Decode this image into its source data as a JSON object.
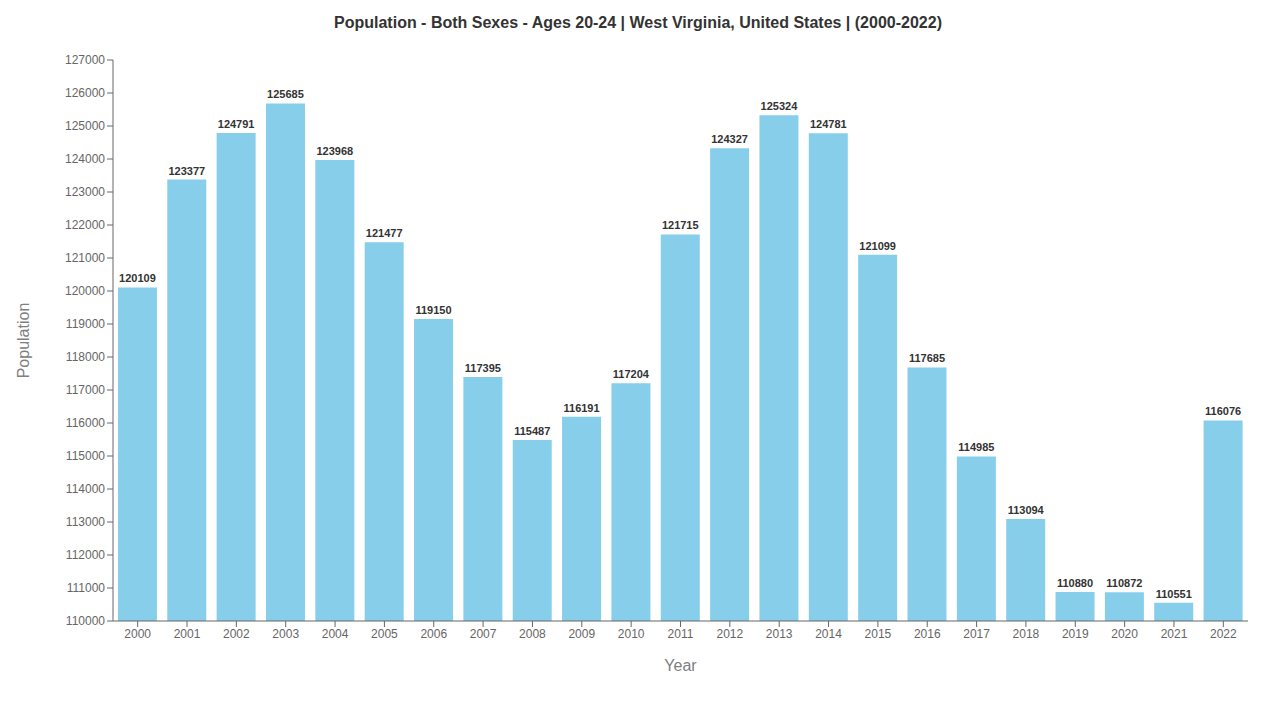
{
  "chart_data": {
    "type": "bar",
    "title": "Population - Both Sexes - Ages 20-24 | West Virginia, United States |  (2000-2022)",
    "xlabel": "Year",
    "ylabel": "Population",
    "categories": [
      "2000",
      "2001",
      "2002",
      "2003",
      "2004",
      "2005",
      "2006",
      "2007",
      "2008",
      "2009",
      "2010",
      "2011",
      "2012",
      "2013",
      "2014",
      "2015",
      "2016",
      "2017",
      "2018",
      "2019",
      "2020",
      "2021",
      "2022"
    ],
    "values": [
      120109,
      123377,
      124791,
      125685,
      123968,
      121477,
      119150,
      117395,
      115487,
      116191,
      117204,
      121715,
      124327,
      125324,
      124781,
      121099,
      117685,
      114985,
      113094,
      110880,
      110872,
      110551,
      116076
    ],
    "color": "#87CEEB",
    "ylim": [
      110000,
      127000
    ],
    "yticks": [
      110000,
      111000,
      112000,
      113000,
      114000,
      115000,
      116000,
      117000,
      118000,
      119000,
      120000,
      121000,
      122000,
      123000,
      124000,
      125000,
      126000,
      127000
    ],
    "grid": false,
    "data_labels": true
  }
}
